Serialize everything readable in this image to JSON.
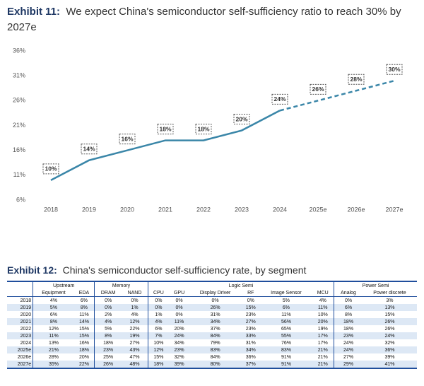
{
  "chart_data": {
    "type": "line",
    "label": "Exhibit 11:",
    "title": "We expect China's semiconductor self-sufficiency ratio to reach 30% by 2027e",
    "categories": [
      "2018",
      "2019",
      "2020",
      "2021",
      "2022",
      "2023",
      "2024",
      "2025e",
      "2026e",
      "2027e"
    ],
    "values": [
      10,
      14,
      16,
      18,
      18,
      20,
      24,
      26,
      28,
      30
    ],
    "value_labels": [
      "10%",
      "14%",
      "16%",
      "18%",
      "18%",
      "20%",
      "24%",
      "26%",
      "28%",
      "30%"
    ],
    "color": "#3a86a8",
    "forecast_from": "2024",
    "ylim": [
      6,
      36
    ],
    "yticks": [
      {
        "value": 6,
        "label": "6%"
      },
      {
        "value": 11,
        "label": "11%"
      },
      {
        "value": 16,
        "label": "16%"
      },
      {
        "value": 21,
        "label": "21%"
      },
      {
        "value": 26,
        "label": "26%"
      },
      {
        "value": 31,
        "label": "31%"
      },
      {
        "value": 36,
        "label": "36%"
      }
    ],
    "grid": false
  },
  "table": {
    "label": "Exhibit 12:",
    "title": "China's semiconductor self-sufficiency rate, by segment",
    "groups": [
      {
        "name": "Upstream",
        "columns": [
          "Equipment",
          "EDA"
        ]
      },
      {
        "name": "Memory",
        "columns": [
          "DRAM",
          "NAND"
        ]
      },
      {
        "name": "Logic Semi",
        "columns": [
          "CPU",
          "GPU",
          "Display Driver",
          "RF",
          "Image Sensor",
          "MCU"
        ]
      },
      {
        "name": "Power Semi",
        "columns": [
          "Analog",
          "Power discrete"
        ]
      }
    ],
    "rows": [
      [
        "2018",
        "4%",
        "6%",
        "0%",
        "0%",
        "0%",
        "0%",
        "0%",
        "0%",
        "5%",
        "4%",
        "0%",
        "3%"
      ],
      [
        "2019",
        "5%",
        "8%",
        "0%",
        "1%",
        "0%",
        "0%",
        "26%",
        "15%",
        "6%",
        "11%",
        "6%",
        "13%"
      ],
      [
        "2020",
        "6%",
        "11%",
        "2%",
        "4%",
        "1%",
        "0%",
        "31%",
        "23%",
        "11%",
        "10%",
        "8%",
        "15%"
      ],
      [
        "2021",
        "8%",
        "14%",
        "4%",
        "12%",
        "4%",
        "11%",
        "34%",
        "27%",
        "56%",
        "20%",
        "18%",
        "26%"
      ],
      [
        "2022",
        "12%",
        "15%",
        "5%",
        "22%",
        "6%",
        "20%",
        "37%",
        "23%",
        "65%",
        "19%",
        "18%",
        "26%"
      ],
      [
        "2023",
        "11%",
        "15%",
        "8%",
        "19%",
        "7%",
        "24%",
        "84%",
        "33%",
        "55%",
        "17%",
        "23%",
        "24%"
      ],
      [
        "2024",
        "13%",
        "16%",
        "18%",
        "27%",
        "10%",
        "34%",
        "79%",
        "31%",
        "76%",
        "17%",
        "24%",
        "32%"
      ],
      [
        "2025e",
        "21%",
        "18%",
        "23%",
        "43%",
        "12%",
        "23%",
        "83%",
        "34%",
        "83%",
        "21%",
        "24%",
        "36%"
      ],
      [
        "2026e",
        "28%",
        "20%",
        "25%",
        "47%",
        "15%",
        "32%",
        "84%",
        "36%",
        "91%",
        "21%",
        "27%",
        "39%"
      ],
      [
        "2027e",
        "35%",
        "22%",
        "26%",
        "48%",
        "18%",
        "39%",
        "80%",
        "37%",
        "91%",
        "21%",
        "29%",
        "41%"
      ]
    ]
  }
}
